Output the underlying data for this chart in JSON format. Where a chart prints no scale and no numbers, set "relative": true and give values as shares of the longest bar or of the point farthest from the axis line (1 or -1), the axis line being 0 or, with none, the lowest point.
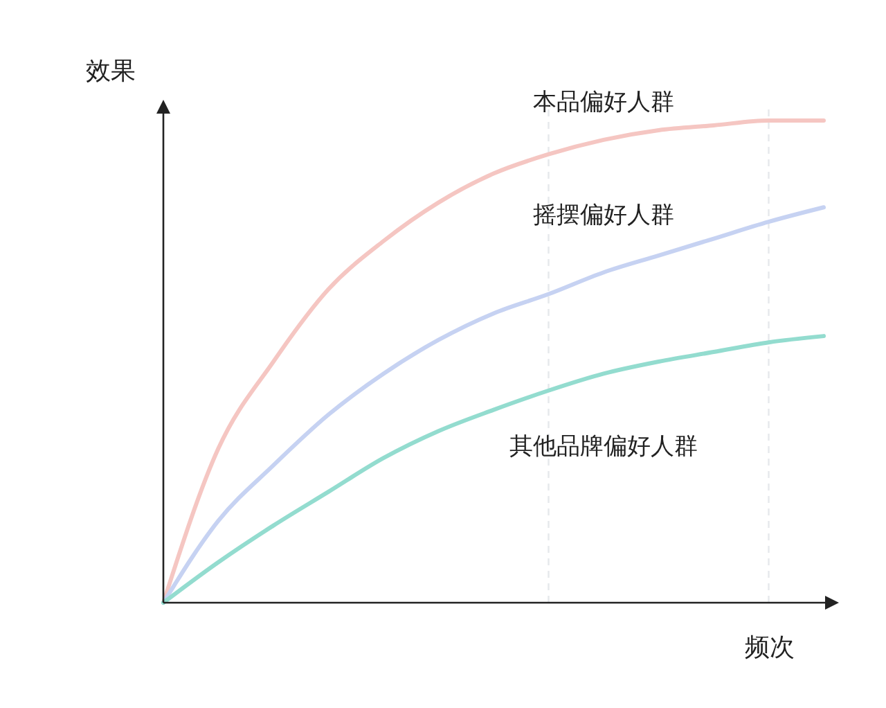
{
  "chart_data": {
    "type": "line",
    "relative": true,
    "xlabel": "频次",
    "ylabel": "效果",
    "legend": false,
    "marker": "none",
    "line_style": "solid",
    "categories": [
      null,
      null,
      null,
      null,
      null,
      null,
      null,
      null,
      null,
      null,
      null,
      null,
      null
    ],
    "series": [
      {
        "name": "本品偏好人群",
        "color": "#f5c6c2",
        "values": [
          0,
          0.32,
          0.5,
          0.65,
          0.75,
          0.83,
          0.89,
          0.93,
          0.96,
          0.98,
          0.99,
          1.0,
          1.0
        ]
      },
      {
        "name": "摇摆偏好人群",
        "color": "#c6d2f2",
        "values": [
          0,
          0.17,
          0.285,
          0.39,
          0.475,
          0.545,
          0.6,
          0.64,
          0.685,
          0.72,
          0.755,
          0.79,
          0.82
        ]
      },
      {
        "name": "其他品牌偏好人群",
        "color": "#93dccf",
        "values": [
          0,
          0.084,
          0.16,
          0.23,
          0.3,
          0.356,
          0.4,
          0.44,
          0.475,
          0.5,
          0.52,
          0.54,
          0.553
        ]
      }
    ]
  }
}
